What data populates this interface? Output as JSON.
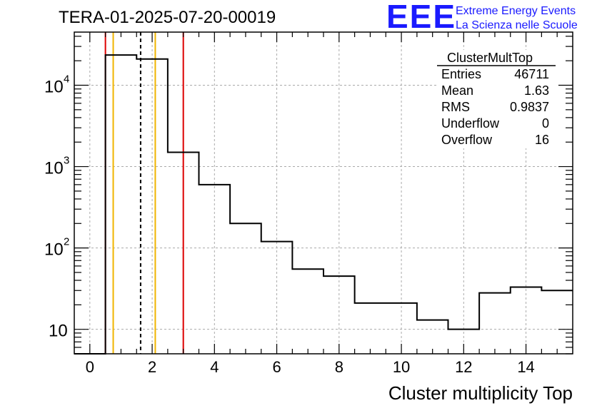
{
  "title": "TERA-01-2025-07-20-00019",
  "logo": {
    "mark": "EEE",
    "line1": "Extreme Energy Events",
    "line2": "La Scienza nelle Scuole",
    "color": "#1a1aff"
  },
  "stats": {
    "name": "ClusterMultTop",
    "rows": [
      {
        "label": "Entries",
        "value": "46711"
      },
      {
        "label": "Mean",
        "value": "1.63"
      },
      {
        "label": "RMS",
        "value": "0.9837"
      },
      {
        "label": "Underflow",
        "value": "0"
      },
      {
        "label": "Overflow",
        "value": "16"
      }
    ]
  },
  "chart_data": {
    "type": "histogram",
    "title": "TERA-01-2025-07-20-00019",
    "xlabel": "Cluster multiplicity Top",
    "ylabel": "",
    "xlim": [
      -0.5,
      15.5
    ],
    "ylim": [
      5,
      45000
    ],
    "yscale": "log",
    "grid": true,
    "bin_width": 1,
    "bins": [
      {
        "x": 0,
        "value": 0
      },
      {
        "x": 1,
        "value": 23500
      },
      {
        "x": 2,
        "value": 21000
      },
      {
        "x": 3,
        "value": 1500
      },
      {
        "x": 4,
        "value": 600
      },
      {
        "x": 5,
        "value": 200
      },
      {
        "x": 6,
        "value": 120
      },
      {
        "x": 7,
        "value": 55
      },
      {
        "x": 8,
        "value": 45
      },
      {
        "x": 9,
        "value": 21
      },
      {
        "x": 10,
        "value": 21
      },
      {
        "x": 11,
        "value": 13
      },
      {
        "x": 12,
        "value": 10
      },
      {
        "x": 13,
        "value": 28
      },
      {
        "x": 14,
        "value": 33
      },
      {
        "x": 15,
        "value": 30
      }
    ],
    "x_ticks": [
      0,
      2,
      4,
      6,
      8,
      10,
      12,
      14
    ],
    "x_tick_labels": [
      "0",
      "2",
      "4",
      "6",
      "8",
      "10",
      "12",
      "14"
    ],
    "y_ticks": [
      10,
      100,
      1000,
      10000
    ],
    "y_tick_labels": [
      {
        "base": "10",
        "exp": ""
      },
      {
        "base": "10",
        "exp": "2"
      },
      {
        "base": "10",
        "exp": "3"
      },
      {
        "base": "10",
        "exp": "4"
      }
    ],
    "vertical_lines": [
      {
        "x": 0.5,
        "color": "#dd0000",
        "style": "solid"
      },
      {
        "x": 0.75,
        "color": "#f0b400",
        "style": "solid"
      },
      {
        "x": 1.63,
        "color": "#000000",
        "style": "dashed"
      },
      {
        "x": 2.1,
        "color": "#f0b400",
        "style": "solid"
      },
      {
        "x": 3.0,
        "color": "#dd0000",
        "style": "solid"
      }
    ]
  }
}
